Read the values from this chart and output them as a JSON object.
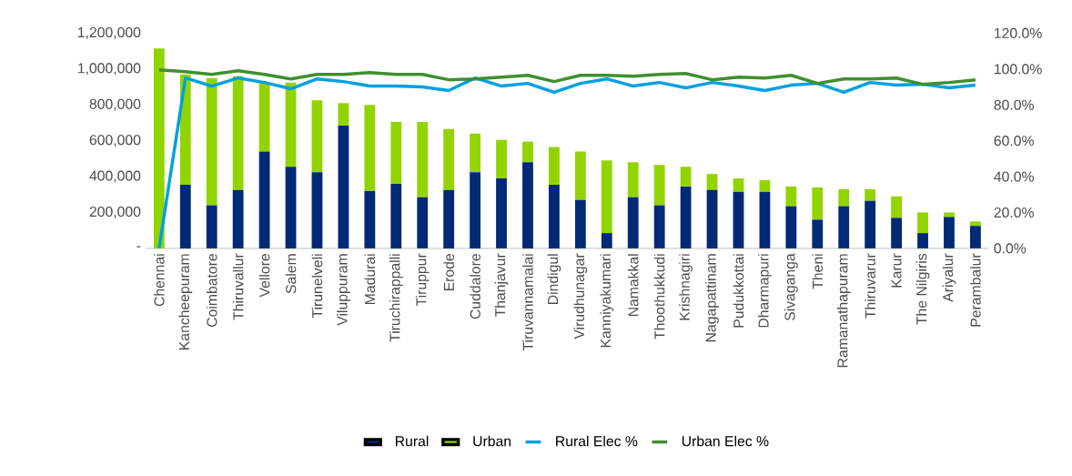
{
  "chart_data": {
    "type": "bar",
    "stacked": true,
    "legend": "bottom",
    "categories": [
      "Chennai",
      "Kancheepuram",
      "Coimbatore",
      "Thiruvallur",
      "Vellore",
      "Salem",
      "Tirunelveli",
      "Viluppuram",
      "Madurai",
      "Tiruchirappalli",
      "Tiruppur",
      "Erode",
      "Cuddalore",
      "Thanjavur",
      "Tiruvannamalai",
      "Dindigul",
      "Virudhunagar",
      "Kanniyakumari",
      "Namakkal",
      "Thoothukkudi",
      "Krishnagiri",
      "Nagapattinam",
      "Pudukkottai",
      "Dharmapuri",
      "Sivaganga",
      "Theni",
      "Ramanathapuram",
      "Thiruvarur",
      "Karur",
      "The Nilgiris",
      "Ariyalur",
      "Perambalur"
    ],
    "series": [
      {
        "name": "Rural",
        "color": "#002a75",
        "values": [
          0,
          355000,
          240000,
          325000,
          540000,
          455000,
          425000,
          685000,
          320000,
          360000,
          285000,
          325000,
          425000,
          390000,
          480000,
          355000,
          270000,
          85000,
          285000,
          240000,
          345000,
          325000,
          315000,
          315000,
          235000,
          160000,
          235000,
          265000,
          170000,
          85000,
          175000,
          125000
        ]
      },
      {
        "name": "Urban",
        "color": "#92d400",
        "values": [
          1115000,
          615000,
          710000,
          635000,
          385000,
          470000,
          400000,
          125000,
          480000,
          345000,
          420000,
          340000,
          215000,
          215000,
          115000,
          210000,
          270000,
          405000,
          195000,
          225000,
          110000,
          90000,
          75000,
          65000,
          110000,
          180000,
          95000,
          65000,
          120000,
          115000,
          25000,
          25000
        ]
      },
      {
        "name": "Rural Elec %",
        "type": "line",
        "axis": "y2",
        "color": "#00a0e0",
        "values": [
          0,
          95,
          90.5,
          95,
          92.5,
          89,
          94.5,
          93,
          90.5,
          90.5,
          90,
          88,
          95,
          90.5,
          92,
          87,
          92,
          94.5,
          90.5,
          92.5,
          89.5,
          92.5,
          90.5,
          88,
          91,
          92,
          87,
          92.5,
          91,
          91.5,
          89.5,
          91
        ]
      },
      {
        "name": "Urban Elec %",
        "type": "line",
        "axis": "y2",
        "color": "#3f8f2f",
        "values": [
          99.5,
          98.5,
          97,
          99,
          97,
          94.5,
          97,
          97,
          98,
          97,
          97,
          94,
          94.5,
          95.5,
          96.5,
          93,
          96.5,
          96.5,
          96,
          97,
          97.5,
          94,
          95.5,
          95,
          96.5,
          92,
          94.5,
          94.5,
          95,
          91.5,
          92.5,
          94
        ]
      }
    ],
    "ylim": [
      0,
      1200000
    ],
    "yticks": [
      {
        "value": 0,
        "label": "-"
      },
      {
        "value": 200000,
        "label": "200,000"
      },
      {
        "value": 400000,
        "label": "400,000"
      },
      {
        "value": 600000,
        "label": "600,000"
      },
      {
        "value": 800000,
        "label": "800,000"
      },
      {
        "value": 1000000,
        "label": "1,000,000"
      },
      {
        "value": 1200000,
        "label": "1,200,000"
      }
    ],
    "y2lim": [
      0,
      120
    ],
    "y2ticks": [
      {
        "value": 0,
        "label": "0.0%"
      },
      {
        "value": 20,
        "label": "20.0%"
      },
      {
        "value": 40,
        "label": "40.0%"
      },
      {
        "value": 60,
        "label": "60.0%"
      },
      {
        "value": 80,
        "label": "80.0%"
      },
      {
        "value": 100,
        "label": "100.0%"
      },
      {
        "value": 120,
        "label": "120.0%"
      }
    ]
  }
}
